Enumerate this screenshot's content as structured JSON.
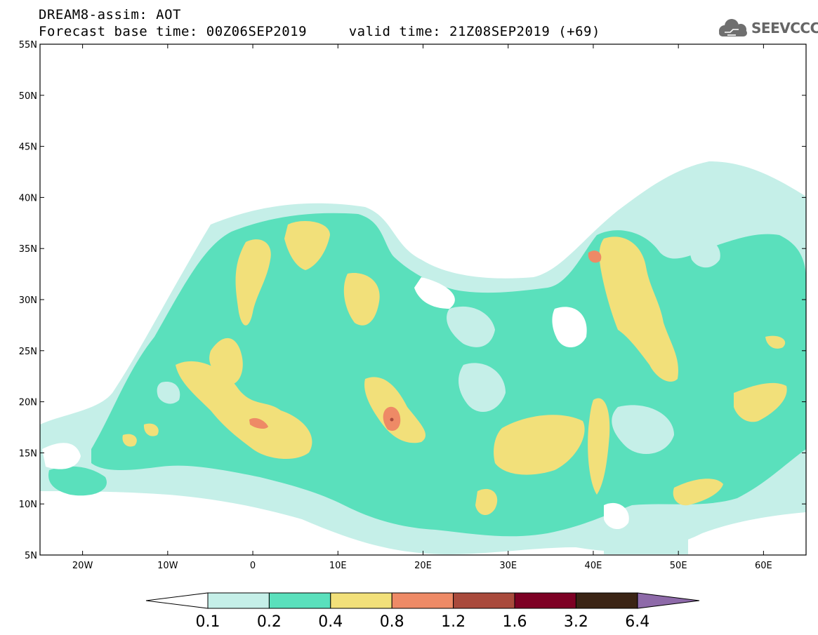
{
  "header": {
    "title": "DREAM8-assim: AOT",
    "subtitle": "Forecast base time: 00Z06SEP2019     valid time: 21Z08SEP2019 (+69)"
  },
  "logo": {
    "text": "SEEVCCC",
    "icon": "cloud-icon"
  },
  "map": {
    "lat_range": [
      5,
      55
    ],
    "lon_range": [
      -25,
      65
    ],
    "lat_ticks": [
      "55N",
      "50N",
      "45N",
      "40N",
      "35N",
      "30N",
      "25N",
      "20N",
      "15N",
      "10N",
      "5N"
    ],
    "lon_ticks": [
      "20W",
      "10W",
      "0",
      "10E",
      "20E",
      "30E",
      "40E",
      "50E",
      "60E"
    ]
  },
  "colorbar": {
    "labels": [
      "0.1",
      "0.2",
      "0.4",
      "0.8",
      "1.2",
      "1.6",
      "3.2",
      "6.4"
    ],
    "colors": [
      "#c5efe8",
      "#5ae0bc",
      "#f2e07a",
      "#ee8a66",
      "#a94a3c",
      "#7d0024",
      "#3b2415",
      "#8e6aa9"
    ],
    "under_color": "#ffffff"
  }
}
